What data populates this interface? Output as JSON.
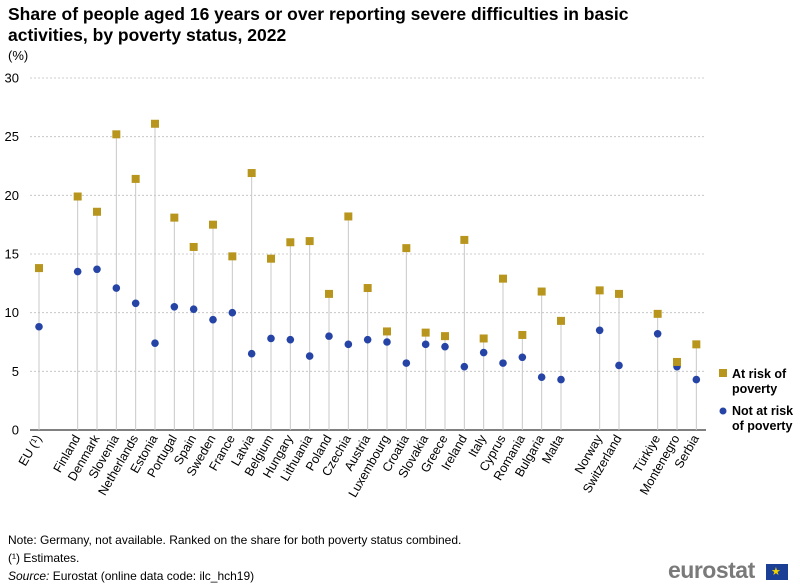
{
  "chart_data": {
    "type": "scatter",
    "title": "Share of people aged 16 years or over reporting severe difficulties in basic activities, by poverty status, 2022",
    "ylabel": "(%)",
    "xlabel": "",
    "ylim": [
      0,
      30
    ],
    "yticks": [
      0,
      5,
      10,
      15,
      20,
      25,
      30
    ],
    "grid": true,
    "legend_position": "right",
    "categories": [
      "EU (¹)",
      "Finland",
      "Denmark",
      "Slovenia",
      "Netherlands",
      "Estonia",
      "Portugal",
      "Spain",
      "Sweden",
      "France",
      "Latvia",
      "Belgium",
      "Hungary",
      "Lithuania",
      "Poland",
      "Czechia",
      "Austria",
      "Luxembourg",
      "Croatia",
      "Slovakia",
      "Greece",
      "Ireland",
      "Italy",
      "Cyprus",
      "Romania",
      "Bulgaria",
      "Malta",
      "Norway",
      "Switzerland",
      "Türkiye",
      "Montenegro",
      "Serbia"
    ],
    "groups": [
      1,
      26,
      2,
      3
    ],
    "series": [
      {
        "name": "At risk of poverty",
        "color": "#b8961e",
        "marker": "square",
        "values": [
          13.8,
          19.9,
          18.6,
          25.2,
          21.4,
          26.1,
          18.1,
          15.6,
          17.5,
          14.8,
          21.9,
          14.6,
          16.0,
          16.1,
          11.6,
          18.2,
          12.1,
          8.4,
          15.5,
          8.3,
          8.0,
          16.2,
          7.8,
          12.9,
          8.1,
          11.8,
          9.3,
          11.9,
          11.6,
          9.9,
          5.8,
          7.3
        ]
      },
      {
        "name": "Not at risk of poverty",
        "color": "#2644a5",
        "marker": "circle",
        "values": [
          8.8,
          13.5,
          13.7,
          12.1,
          10.8,
          7.4,
          10.5,
          10.3,
          9.4,
          10.0,
          6.5,
          7.8,
          7.7,
          6.3,
          8.0,
          7.3,
          7.7,
          7.5,
          5.7,
          7.3,
          7.1,
          5.4,
          6.6,
          5.7,
          6.2,
          4.5,
          4.3,
          8.5,
          5.5,
          8.2,
          5.4,
          4.3
        ]
      }
    ],
    "legend": {
      "at_risk_line1": "At risk of",
      "at_risk_line2": "poverty",
      "not_at_risk_line1": "Not at risk",
      "not_at_risk_line2": "of poverty"
    }
  },
  "notes": {
    "note_line": "Note: Germany, not available. Ranked on the share for both poverty status combined.",
    "estimates_line": "(¹) Estimates.",
    "source_label": "Source:",
    "source_text": " Eurostat (online data code: ilc_hch19)"
  },
  "brand": {
    "name": "eurostat"
  }
}
